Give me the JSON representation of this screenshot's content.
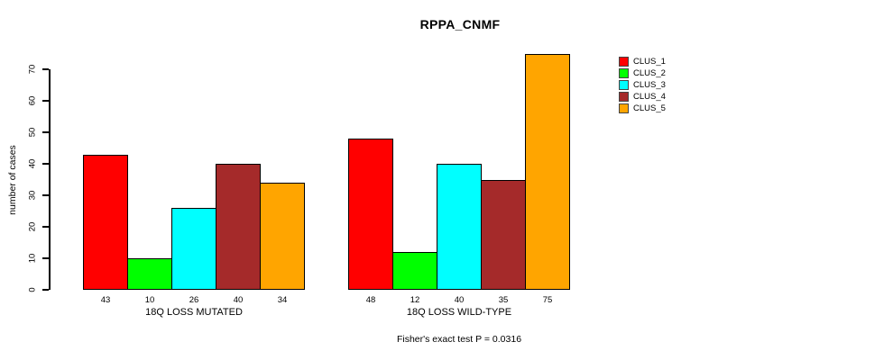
{
  "title": "RPPA_CNMF",
  "ylabel": "number of cases",
  "caption": "Fisher's exact test P = 0.0316",
  "chart_data": {
    "type": "bar",
    "title": "RPPA_CNMF",
    "xlabel": "",
    "ylabel": "number of cases",
    "ylim": [
      0,
      70
    ],
    "yticks": [
      0,
      10,
      20,
      30,
      40,
      50,
      60,
      70
    ],
    "grid": false,
    "legend_position": "right",
    "bar_value_labels": true,
    "series_names": [
      "CLUS_1",
      "CLUS_2",
      "CLUS_3",
      "CLUS_4",
      "CLUS_5"
    ],
    "series_colors": [
      "#FF0000",
      "#00FF00",
      "#00FFFF",
      "#A52A2A",
      "#FFA500"
    ],
    "groups": [
      {
        "label": "18Q LOSS MUTATED",
        "values": [
          43,
          10,
          26,
          40,
          34
        ]
      },
      {
        "label": "18Q LOSS WILD-TYPE",
        "values": [
          48,
          12,
          40,
          35,
          75
        ]
      }
    ],
    "annotation": "Fisher's exact test P = 0.0316"
  }
}
